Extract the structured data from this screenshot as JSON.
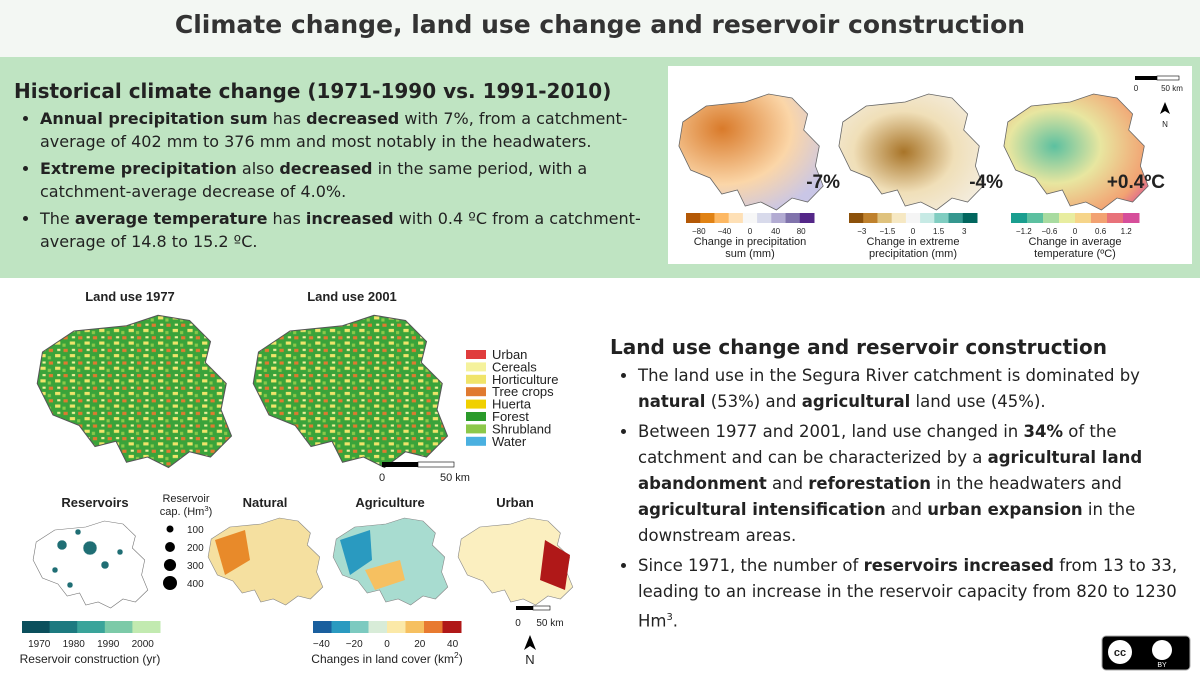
{
  "header": {
    "title": "Climate change, land use change and reservoir construction"
  },
  "climate": {
    "heading": "Historical climate change (1971-1990 vs. 1991-2010)",
    "bullets": [
      [
        {
          "text": "Annual precipitation sum",
          "style": "bold"
        },
        " has ",
        {
          "text": "decreased",
          "style": "bold"
        },
        " with 7%, from a catchment-average of 402 mm to 376 mm and most notably in the headwaters."
      ],
      [
        {
          "text": "Extreme precipitation",
          "style": "bold"
        },
        " also ",
        {
          "text": "decreased",
          "style": "bold"
        },
        " in the same period, with a catchment-average decrease of 4.0%."
      ],
      [
        "The ",
        {
          "text": "average temperature",
          "style": "bold"
        },
        " has ",
        {
          "text": "increased",
          "style": "bold"
        },
        " with 0.4 ºC from a catchment-average of 14.8 to 15.2 ºC."
      ]
    ],
    "panels": [
      {
        "label": "-7%",
        "ticks": [
          "−80",
          "−40",
          "0",
          "40",
          "80"
        ],
        "caption": [
          "Change in precipitation",
          "sum (mm)"
        ],
        "colors": [
          "#b35806",
          "#e08214",
          "#fdb863",
          "#fee0b6",
          "#f7f7f7",
          "#d8daeb",
          "#b2abd2",
          "#8073ac",
          "#542788"
        ]
      },
      {
        "label": "-4%",
        "ticks": [
          "−3",
          "−1.5",
          "0",
          "1.5",
          "3"
        ],
        "caption": [
          "Change in extreme",
          "precipitation (mm)"
        ],
        "colors": [
          "#8c510a",
          "#bf812d",
          "#dfc27d",
          "#f6e8c3",
          "#f5f5f5",
          "#c7eae5",
          "#80cdc1",
          "#35978f",
          "#01665e"
        ]
      },
      {
        "label": "+0.4ºC",
        "ticks": [
          "−1.2",
          "−0.6",
          "0",
          "0.6",
          "1.2"
        ],
        "caption": [
          "Change in average",
          "temperature (ºC)"
        ],
        "colors": [
          "#1a9e8f",
          "#5cc0a0",
          "#a8dba0",
          "#e8eda0",
          "#f6d58a",
          "#f2a272",
          "#e8727a",
          "#d64e9a"
        ]
      }
    ],
    "scale": {
      "zero": "0",
      "length": "50 km",
      "north": "N"
    }
  },
  "land_use": {
    "maps": [
      "Land use 1977",
      "Land use 2001"
    ],
    "legend": [
      {
        "name": "Urban",
        "color": "#e03c3c"
      },
      {
        "name": "Cereals",
        "color": "#f5f29c"
      },
      {
        "name": "Horticulture",
        "color": "#f0e46a"
      },
      {
        "name": "Tree crops",
        "color": "#e07a30"
      },
      {
        "name": "Huerta",
        "color": "#f0d000"
      },
      {
        "name": "Forest",
        "color": "#2a9a2a"
      },
      {
        "name": "Shrubland",
        "color": "#8cc84a"
      },
      {
        "name": "Water",
        "color": "#4ab0e0"
      }
    ],
    "scale": {
      "zero": "0",
      "length": "50 km"
    },
    "reservoirs": {
      "title": "Reservoirs",
      "cap_title": [
        [
          "Reservoir"
        ],
        [
          "cap. (Hm",
          {
            "text": "3",
            "style": "sup"
          },
          ")"
        ]
      ],
      "sizes": [
        100,
        200,
        300,
        400
      ],
      "colorbar": {
        "ticks": [
          1970,
          1980,
          1990,
          2000
        ],
        "caption": "Reservoir construction (yr)",
        "colors": [
          "#0b4f5c",
          "#1d7a80",
          "#3aa49a",
          "#7ccaa8",
          "#c2eab0"
        ]
      }
    },
    "change_maps": [
      "Natural",
      "Agriculture",
      "Urban"
    ],
    "change_colorbar": {
      "ticks": [
        "−40",
        "−20",
        "0",
        "20",
        "40"
      ],
      "caption": [
        "Changes in land cover (km",
        {
          "text": "2",
          "style": "sup"
        },
        ")"
      ],
      "colors": [
        "#1a5f9e",
        "#2a9ac0",
        "#7ccac0",
        "#d8ecd8",
        "#fbe9a8",
        "#f6c060",
        "#e87a30",
        "#b01818"
      ]
    },
    "scale2": {
      "zero": "0",
      "length": "50 km",
      "north": "N"
    }
  },
  "reservoir_text": {
    "heading": "Land use change and reservoir construction",
    "bullets": [
      [
        "The land use in the Segura River catchment is dominated by ",
        {
          "text": "natural",
          "style": "bold"
        },
        " (53%) and ",
        {
          "text": "agricultural",
          "style": "bold"
        },
        " land use (45%)."
      ],
      [
        "Between 1977 and 2001, land use changed in ",
        {
          "text": "34%",
          "style": "bold"
        },
        " of the catchment and can be characterized by a ",
        {
          "text": "agricultural land abandonment",
          "style": "bold"
        },
        " and ",
        {
          "text": "reforestation",
          "style": "bold"
        },
        " in the headwaters and ",
        {
          "text": "agricultural intensification",
          "style": "bold"
        },
        " and ",
        {
          "text": "urban expansion",
          "style": "bold"
        },
        " in the downstream areas."
      ],
      [
        "Since 1971, the number of ",
        {
          "text": "reservoirs increased",
          "style": "bold"
        },
        " from 13 to 33, leading to an increase in the reservoir capacity from 820 to 1230 Hm",
        {
          "text": "3",
          "style": "sup"
        },
        "."
      ]
    ]
  },
  "license": {
    "cc": "cc",
    "by": "BY"
  }
}
